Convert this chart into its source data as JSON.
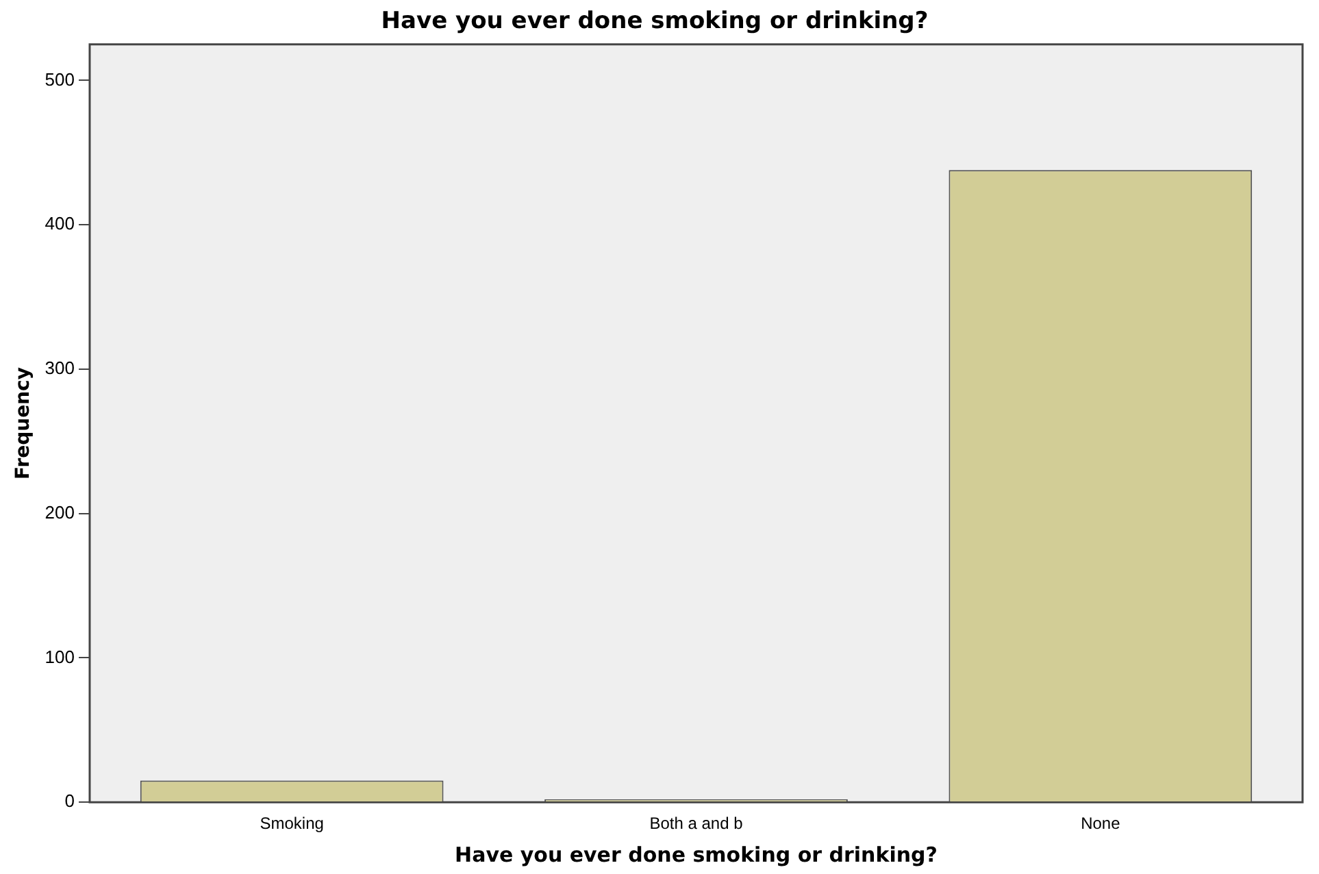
{
  "chart_data": {
    "type": "bar",
    "title": "Have you ever done smoking or drinking?",
    "xlabel": "Have you ever done smoking or drinking?",
    "ylabel": "Frequency",
    "categories": [
      "Smoking",
      "Both a and b",
      "None"
    ],
    "values": [
      15,
      2,
      438
    ],
    "color": "#d2cd96",
    "ylim": [
      0,
      525
    ],
    "yticks": [
      0,
      100,
      200,
      300,
      400,
      500
    ],
    "grid": false,
    "legend": false
  }
}
